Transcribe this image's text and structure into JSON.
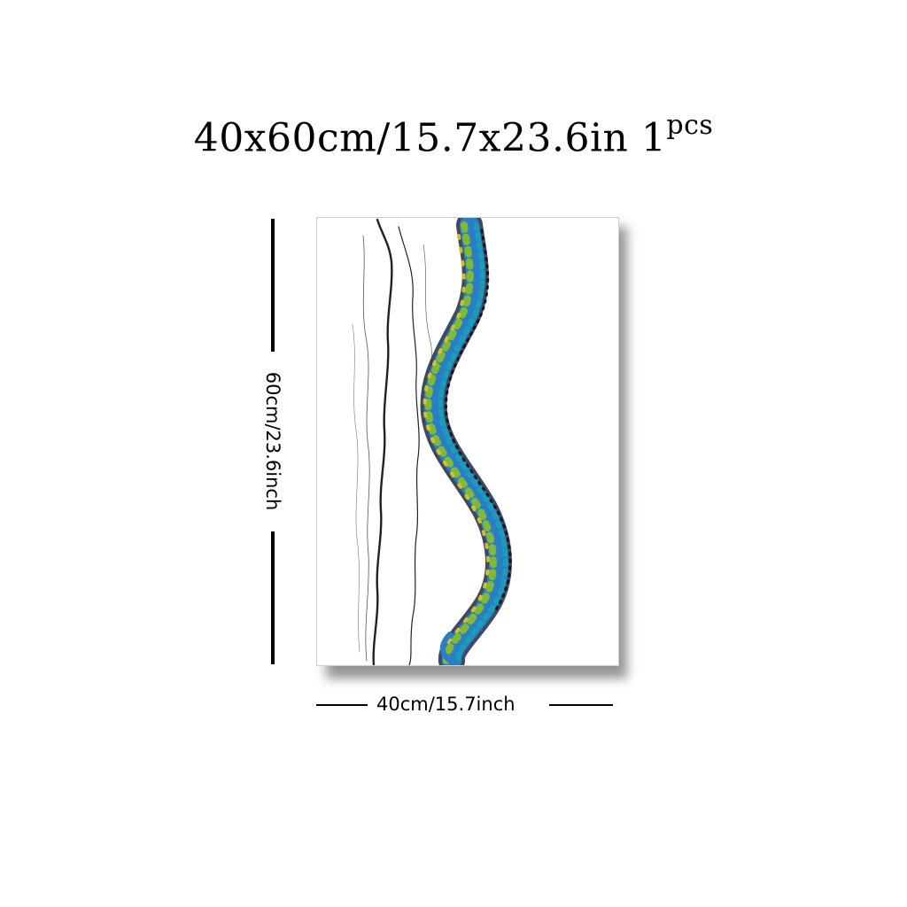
{
  "product": {
    "size_title": "40x60cm/15.7x23.6in 1",
    "quantity_sup": "pcs",
    "height_label": "60cm/23.6inch",
    "width_label": "40cm/15.7inch"
  },
  "artwork": {
    "subject": "spine-painting",
    "colors": {
      "blue": "#2a7fc4",
      "teal": "#1aa1b8",
      "green": "#8bbf2a",
      "yellow": "#e0c81f",
      "dark": "#1b1b1b",
      "line": "#222222"
    }
  }
}
